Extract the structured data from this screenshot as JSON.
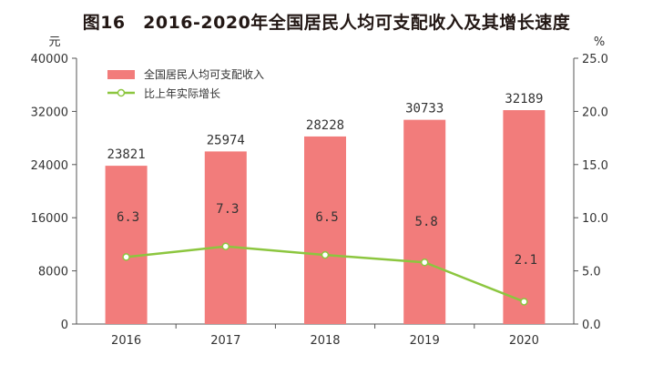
{
  "chart_data": {
    "type": "bar",
    "title": "图16　2016-2020年全国居民人均可支配收入及其增长速度",
    "categories": [
      "2016",
      "2017",
      "2018",
      "2019",
      "2020"
    ],
    "left_axis": {
      "unit": "元",
      "ylim": [
        0,
        40000
      ],
      "ticks": [
        "0",
        "8000",
        "16000",
        "24000",
        "32000",
        "40000"
      ]
    },
    "right_axis": {
      "unit": "%",
      "ylim": [
        0,
        25
      ],
      "ticks": [
        "0.0",
        "5.0",
        "10.0",
        "15.0",
        "20.0",
        "25.0"
      ]
    },
    "series": [
      {
        "name": "全国居民人均可支配收入",
        "type": "bar",
        "axis": "left",
        "color": "#f27c7b",
        "values": [
          23821,
          25974,
          28228,
          30733,
          32189
        ],
        "labels": [
          "23821",
          "25974",
          "28228",
          "30733",
          "32189"
        ]
      },
      {
        "name": "比上年实际增长",
        "type": "line",
        "axis": "right",
        "color": "#8cc63f",
        "values": [
          6.3,
          7.3,
          6.5,
          5.8,
          2.1
        ],
        "labels": [
          "6.3",
          "7.3",
          "6.5",
          "5.8",
          "2.1"
        ]
      }
    ],
    "grid": false,
    "legend_position": "top-left"
  }
}
